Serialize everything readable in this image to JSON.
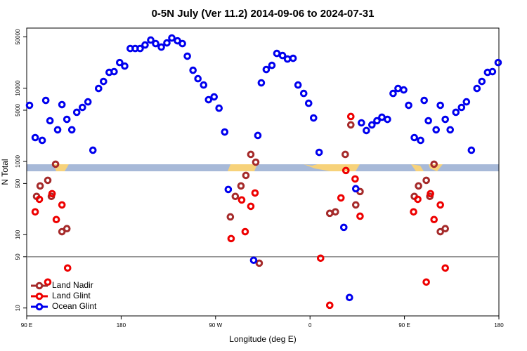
{
  "chart_data": {
    "type": "scatter",
    "title": "0-5N July (Ver 11.2)   2014-09-06 to 2024-07-31",
    "x_label": "Longitude (deg E)",
    "y_label": "N Total",
    "xlim": [
      90,
      540
    ],
    "xticks": [
      {
        "value": 90,
        "label": "90 E"
      },
      {
        "value": 180,
        "label": "180"
      },
      {
        "value": 270,
        "label": "90 W"
      },
      {
        "value": 360,
        "label": "0"
      },
      {
        "value": 450,
        "label": "90 E"
      },
      {
        "value": 540,
        "label": "180"
      }
    ],
    "ylim": [
      7.8,
      66000
    ],
    "log_y": true,
    "yticks": [
      10,
      50,
      100,
      500,
      1000,
      5000,
      10000,
      50000
    ],
    "hline": 50,
    "legend": "lower left",
    "series": [
      {
        "name": "Land Nadir",
        "color": "#a52a2a",
        "x": [
          99.4,
          102.8,
          110.1,
          113.5,
          117.5,
          123.6,
          128.3,
          284.1,
          288.8,
          294.2,
          298.9,
          303.6,
          308.3,
          311.6,
          378.8,
          384.2,
          393.6,
          398.9,
          403.6,
          407.7,
          459.4,
          463.4,
          470.8,
          474.2,
          478.2,
          484.2,
          488.9
        ],
        "values": [
          333,
          463,
          552,
          333,
          916,
          110,
          121,
          175,
          333,
          463,
          644,
          1247,
          977,
          40.9,
          196,
          205,
          1247,
          3150,
          255,
          388,
          333,
          463,
          552,
          333,
          916,
          110,
          121
        ]
      },
      {
        "name": "Land Glint",
        "color": "#ee0000",
        "x": [
          98.1,
          102.1,
          110.1,
          114.2,
          118.2,
          123.6,
          129.0,
          284.8,
          294.9,
          298.2,
          303.6,
          307.6,
          370.1,
          378.8,
          389.5,
          394.2,
          398.9,
          403.0,
          407.7,
          458.7,
          462.7,
          470.8,
          474.8,
          478.2,
          484.2,
          488.9
        ],
        "values": [
          205,
          304,
          22.6,
          363,
          161,
          255,
          35.1,
          88.5,
          298,
          110,
          244,
          371,
          47.8,
          10.9,
          318,
          752,
          4100,
          577,
          179,
          205,
          304,
          22.6,
          363,
          161,
          255,
          35.1
        ]
      },
      {
        "name": "Ocean Glint",
        "color": "#0000ee",
        "x": [
          92.7,
          98.1,
          104.8,
          108.2,
          112.2,
          119.5,
          123.6,
          128.3,
          133.0,
          137.7,
          143.1,
          148.4,
          153.1,
          158.5,
          163.2,
          168.6,
          173.3,
          178.6,
          183.4,
          188.7,
          193.4,
          198.1,
          202.8,
          208.2,
          212.9,
          218.3,
          223.6,
          228.3,
          233.7,
          238.4,
          243.1,
          248.5,
          253.2,
          258.6,
          263.3,
          268.6,
          273.3,
          278.7,
          282.1,
          306.3,
          310.3,
          313.6,
          318.3,
          323.7,
          328.4,
          333.8,
          338.5,
          343.9,
          348.6,
          354.0,
          358.7,
          363.4,
          368.7,
          392.2,
          397.6,
          403.6,
          409.0,
          413.7,
          419.0,
          423.8,
          428.5,
          433.8,
          439.2,
          443.9,
          449.3,
          454.0,
          459.4,
          465.4,
          468.8,
          472.8,
          480.2,
          484.2,
          488.9,
          493.6,
          499.0,
          504.4,
          509.1,
          513.8,
          519.1,
          523.8,
          529.2,
          533.9,
          539.3
        ],
        "values": [
          5830,
          2115,
          1937,
          6800,
          3590,
          2700,
          5960,
          3750,
          2700,
          4680,
          5460,
          6500,
          1422,
          9890,
          12330,
          16410,
          16790,
          22340,
          20000,
          34750,
          34750,
          34750,
          38800,
          45290,
          40550,
          36310,
          41400,
          48300,
          44260,
          40550,
          27290,
          17540,
          13460,
          11040,
          6950,
          7590,
          5330,
          2520,
          414,
          44.8,
          2260,
          11800,
          17950,
          20460,
          29780,
          27860,
          24950,
          25530,
          11040,
          8470,
          6220,
          3920,
          1330,
          126,
          13.9,
          424,
          3360,
          2640,
          3150,
          3590,
          4010,
          3750,
          8470,
          9890,
          9460,
          5830,
          2115,
          1937,
          6800,
          3590,
          2700,
          5830,
          3750,
          2700,
          4680,
          5460,
          6500,
          1422,
          9890,
          12330,
          16410,
          16790,
          22340
        ]
      }
    ]
  }
}
